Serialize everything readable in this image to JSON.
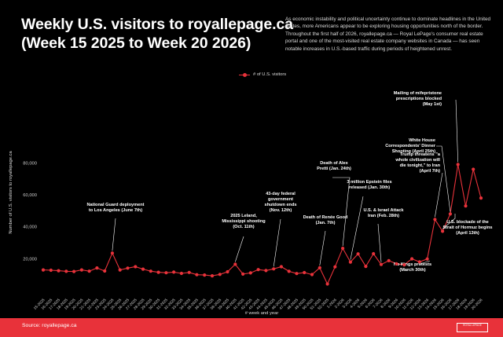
{
  "title_line1": "Weekly U.S. visitors to royallepage.ca",
  "title_line2": "(Week 15 2025 to Week 20 2026)",
  "description": "As economic instability and political uncertainty continue to dominate headlines in the United States, more Americans appear to be exploring housing opportunities north of the border. Throughout the first half of 2026, royallepage.ca — Royal LePage's consumer real estate portal and one of the most-visited real estate company websites in Canada — has seen notable increases in U.S.-based traffic during periods of heightened unrest.",
  "source": "Source: royallepage.ca",
  "logo_text": "ROYAL LEPAGE",
  "accent_color": "#e8323a",
  "chart_data": {
    "type": "line",
    "title": "Weekly U.S. visitors to royallepage.ca (Week 15 2025 to Week 20 2026)",
    "xlabel": "# week and year",
    "ylabel": "Number of U.S. visitors to royallepage.ca",
    "ylim": [
      0,
      85000
    ],
    "yticks": [
      20000,
      40000,
      60000,
      80000
    ],
    "ytick_labels": [
      "20,000",
      "40,000",
      "60,000",
      "80,000"
    ],
    "grid": false,
    "legend_position": "top-center",
    "x": [
      "15-2025",
      "16-2025",
      "17-2025",
      "18-2025",
      "19-2025",
      "20-2025",
      "21-2025",
      "22-2025",
      "23-2025",
      "24-2025",
      "25-2025",
      "26-2025",
      "27-2025",
      "28-2025",
      "29-2025",
      "30-2025",
      "31-2025",
      "32-2025",
      "33-2025",
      "34-2025",
      "35-2025",
      "36-2025",
      "37-2025",
      "38-2025",
      "39-2025",
      "40-2025",
      "41-2025",
      "42-2025",
      "43-2025",
      "44-2025",
      "45-2025",
      "46-2025",
      "47-2025",
      "48-2025",
      "49-2025",
      "50-2025",
      "51-2025",
      "52-2025",
      "1-2026",
      "2-2026",
      "3-2026",
      "4-2026",
      "5-2026",
      "6-2026",
      "7-2026",
      "8-2026",
      "9-2026",
      "10-2026",
      "11-2026",
      "12-2026",
      "13-2026",
      "14-2026",
      "15-2026",
      "16-2026",
      "17-2026",
      "18-2026",
      "19-2026",
      "20-2026"
    ],
    "series": [
      {
        "name": "# of U.S. visitors",
        "color": "#e8323a",
        "values": [
          13000,
          12800,
          12500,
          12100,
          12000,
          13000,
          12200,
          14200,
          12300,
          23500,
          13000,
          14100,
          15000,
          13500,
          12200,
          11500,
          11200,
          11600,
          10800,
          11400,
          10000,
          9800,
          9300,
          10200,
          11800,
          16500,
          10400,
          11100,
          13200,
          12600,
          13600,
          15000,
          12100,
          10700,
          11300,
          10100,
          14300,
          4200,
          14900,
          26500,
          17900,
          23000,
          15200,
          23100,
          16400,
          18800,
          16800,
          16200,
          19900,
          18000,
          19800,
          44600,
          37200,
          48000,
          79000,
          53000,
          76000,
          58000
        ]
      }
    ],
    "annotations": [
      {
        "text": [
          "National Guard deployment",
          "to Los Angeles (June 7th)"
        ],
        "index": 9
      },
      {
        "text": [
          "2025 Leland,",
          "Mississippi shooting",
          "(Oct. 11th)"
        ],
        "index": 25
      },
      {
        "text": [
          "43-day federal",
          "government",
          "shutdown ends",
          "(Nov. 12th)"
        ],
        "index": 30
      },
      {
        "text": [
          "Death of Renée Good",
          "(Jan. 7th)"
        ],
        "index": 36
      },
      {
        "text": [
          "Death of Alex",
          "Pretti (Jan. 24th)"
        ],
        "index": 39
      },
      {
        "text": [
          "3 million Epstein files",
          "released (Jan. 30th)"
        ],
        "index": 40
      },
      {
        "text": [
          "U.S. & Israel Attack",
          "Iran (Feb. 28th)"
        ],
        "index": 44
      },
      {
        "text": [
          "No Kings protests",
          "(March 30th)"
        ],
        "index": 49
      },
      {
        "text": [
          "Trump threatens \"a",
          "whole civilization will",
          "die tonight,\" to Iran",
          "(April 7th)"
        ],
        "index": 51
      },
      {
        "text": [
          "U.S. blockade of the",
          "Strait of Hormuz begins",
          "(April 13th)"
        ],
        "index": 52
      },
      {
        "text": [
          "White House",
          "Correspondents' Dinner",
          "Shooting (April 25th)"
        ],
        "index": 53
      },
      {
        "text": [
          "Mailing of mifepristone",
          "prescriptions blocked",
          "(May 1st)"
        ],
        "index": 54
      }
    ]
  }
}
